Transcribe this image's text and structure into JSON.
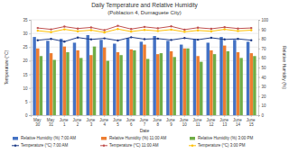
{
  "chart_data": {
    "type": "bar",
    "title": "Daily Temperature and Relative Humidity",
    "subtitle": "(Poblacion 4, Dumaguete City)",
    "x_label": "Date",
    "y_label": "Temperature (°C)",
    "y2_label": "Relative Humidity (%)",
    "categories": [
      "May 30",
      "May 31",
      "June 1",
      "June 2",
      "June 3",
      "June 4",
      "June 5",
      "June 6",
      "June 7",
      "June 8",
      "June 9",
      "June 10",
      "June 11",
      "June 12",
      "June 13",
      "June 14",
      "June 15"
    ],
    "ylim": [
      0,
      35
    ],
    "yticks": [
      0,
      5,
      10,
      15,
      20,
      25,
      30,
      35
    ],
    "y2lim": [
      0,
      100
    ],
    "y2ticks": [
      0,
      10,
      20,
      30,
      40,
      50,
      60,
      70,
      80,
      90,
      100
    ],
    "grid": true,
    "legend": "bottom",
    "series": [
      {
        "name": "Relative Humidity (%) 7:00 AM",
        "type": "bar",
        "axis": "y2",
        "color": "#4472c4",
        "values": [
          82,
          78,
          80,
          76,
          84,
          79,
          75,
          81,
          77,
          83,
          78,
          74,
          80,
          76,
          82,
          79,
          77
        ]
      },
      {
        "name": "Relative Humidity (%) 11:00 AM",
        "type": "bar",
        "axis": "y2",
        "color": "#ed7d31",
        "values": [
          70,
          65,
          72,
          68,
          63,
          71,
          66,
          69,
          74,
          64,
          67,
          70,
          62,
          68,
          73,
          66,
          65
        ]
      },
      {
        "name": "Relative Humidity (%) 3:00 PM",
        "type": "bar",
        "axis": "y2",
        "color": "#70ad47",
        "values": [
          62,
          58,
          66,
          60,
          72,
          57,
          63,
          68,
          59,
          65,
          61,
          70,
          56,
          64,
          67,
          60,
          62
        ]
      },
      {
        "name": "Temperature (°C) 7:00 AM",
        "type": "line",
        "marker": "circle",
        "color": "#1f3c88",
        "values": [
          27.5,
          28,
          27,
          28.5,
          27.8,
          28.2,
          27.4,
          28.6,
          27.9,
          28.1,
          27.6,
          28.3,
          27.7,
          28.4,
          27.8,
          28,
          27.5
        ]
      },
      {
        "name": "Temperature (°C) 11:00 AM",
        "type": "line",
        "marker": "circle",
        "color": "#c0504d",
        "values": [
          32,
          31.5,
          32.5,
          31.8,
          32.2,
          31.2,
          32.8,
          31.6,
          32.4,
          31.9,
          32.6,
          31.4,
          32.1,
          31.7,
          32.3,
          31.8,
          32
        ]
      },
      {
        "name": "Temperature (°C) 3:00 PM",
        "type": "line",
        "marker": "circle",
        "color": "#ffc000",
        "values": [
          31,
          30.5,
          31.5,
          30.8,
          31.2,
          30.4,
          31.6,
          30.7,
          31.3,
          30.9,
          31.4,
          30.6,
          31.1,
          30.8,
          31.5,
          30.9,
          31.2
        ]
      }
    ]
  }
}
